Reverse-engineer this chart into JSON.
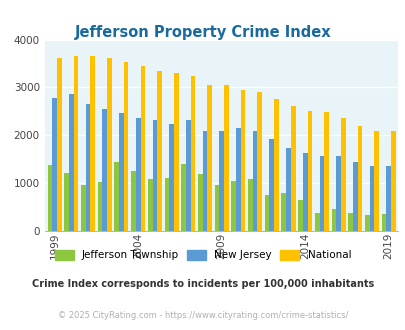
{
  "title": "Jefferson Property Crime Index",
  "title_color": "#1a6aa0",
  "years": [
    1999,
    2000,
    2001,
    2002,
    2003,
    2004,
    2005,
    2006,
    2007,
    2008,
    2009,
    2010,
    2011,
    2012,
    2013,
    2014,
    2015,
    2016,
    2017,
    2018,
    2019
  ],
  "jefferson": [
    1370,
    1220,
    970,
    1030,
    1440,
    1260,
    1090,
    1100,
    1410,
    1190,
    960,
    1050,
    1080,
    760,
    790,
    640,
    370,
    460,
    370,
    340,
    350
  ],
  "new_jersey": [
    2780,
    2870,
    2650,
    2560,
    2470,
    2360,
    2310,
    2230,
    2310,
    2100,
    2090,
    2160,
    2090,
    1920,
    1730,
    1640,
    1570,
    1570,
    1440,
    1360,
    1360
  ],
  "national": [
    3620,
    3660,
    3650,
    3610,
    3540,
    3440,
    3340,
    3300,
    3240,
    3060,
    3050,
    2940,
    2900,
    2760,
    2620,
    2510,
    2490,
    2360,
    2200,
    2100,
    2100
  ],
  "jefferson_color": "#8dc63f",
  "nj_color": "#5b9bd5",
  "national_color": "#ffc000",
  "bg_color": "#e8f4f8",
  "ylim": [
    0,
    4000
  ],
  "yticks": [
    0,
    1000,
    2000,
    3000,
    4000
  ],
  "xlabel_ticks": [
    1999,
    2004,
    2009,
    2014,
    2019
  ],
  "subtitle": "Crime Index corresponds to incidents per 100,000 inhabitants",
  "footnote": "© 2025 CityRating.com - https://www.cityrating.com/crime-statistics/",
  "legend_labels": [
    "Jefferson Township",
    "New Jersey",
    "National"
  ]
}
